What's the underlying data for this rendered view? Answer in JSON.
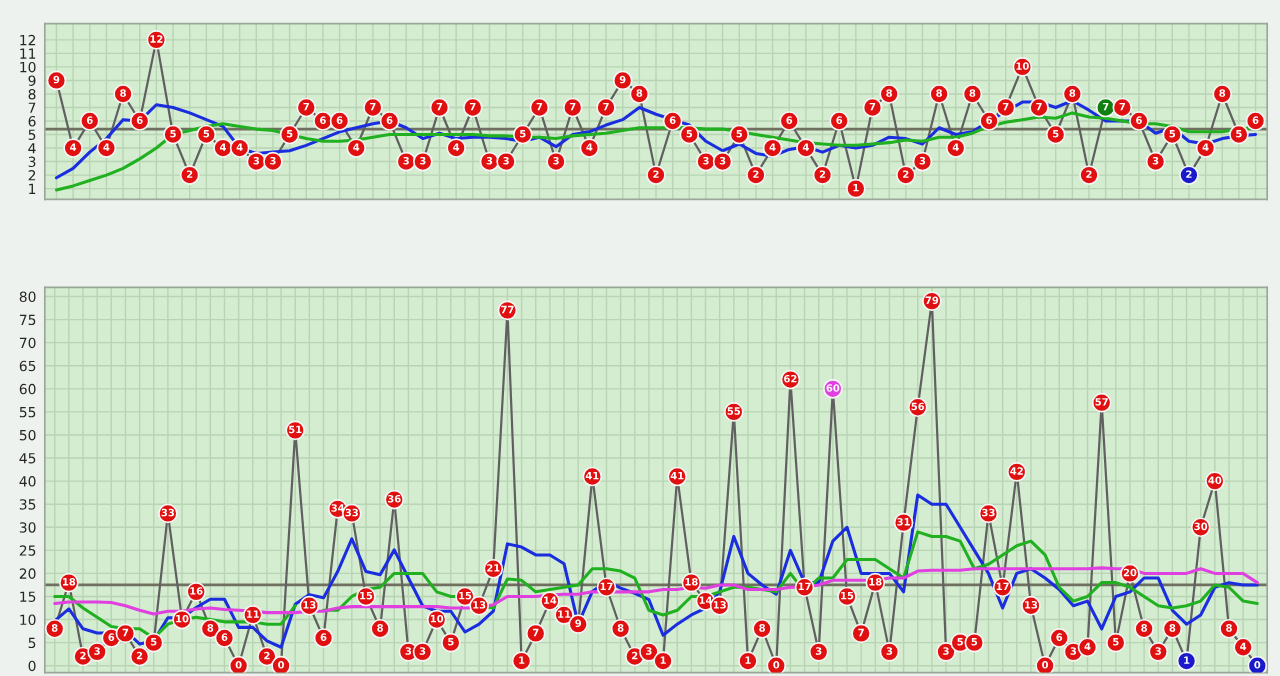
{
  "chart_data": [
    {
      "type": "line",
      "categories": [
        null,
        null,
        null,
        null,
        null,
        null,
        null,
        null,
        null,
        null,
        null,
        null,
        null,
        null,
        null,
        null,
        null,
        null,
        null,
        null,
        null,
        null,
        null,
        null,
        null,
        null,
        null,
        null,
        null,
        null,
        null,
        null,
        null,
        null,
        null,
        null,
        null,
        null,
        null,
        null,
        null,
        null,
        null,
        null,
        null,
        null,
        null,
        null,
        null,
        null,
        null,
        null,
        null,
        null,
        null,
        null,
        null,
        null,
        null,
        null,
        null,
        null,
        null,
        null,
        null,
        null,
        null,
        null,
        null,
        null,
        null,
        null,
        null
      ],
      "ylim": [
        0.2,
        13.2
      ],
      "yticks": [
        1,
        2,
        3,
        4,
        5,
        6,
        7,
        8,
        9,
        10,
        11,
        12
      ],
      "grid": true,
      "tick_labels": "y",
      "ref_lines": [
        {
          "axis": "y",
          "value": 5.4,
          "color": "#707060"
        }
      ],
      "series": [
        {
          "type": "line",
          "color": "#606060",
          "marker": "circle",
          "values": [
            9,
            4,
            6,
            4,
            8,
            6,
            12,
            5,
            2,
            5,
            4,
            4,
            3,
            3,
            5,
            7,
            6,
            6,
            4,
            7,
            6,
            3,
            3,
            7,
            4,
            7,
            3,
            3,
            5,
            7,
            3,
            7,
            4,
            7,
            9,
            8,
            2,
            6,
            5,
            3,
            3,
            5,
            2,
            4,
            6,
            4,
            2,
            6,
            1,
            7,
            8,
            2,
            3,
            8,
            4,
            8,
            6,
            7,
            10,
            7,
            5,
            8,
            2,
            7,
            7,
            6,
            3,
            5,
            2,
            4,
            8,
            5,
            6
          ],
          "value_labels": [
            "9",
            "4",
            "6",
            "4",
            "8",
            "6",
            "12",
            "5",
            "2",
            "5",
            "4",
            "4",
            "3",
            "3",
            "5",
            "7",
            "6",
            "6",
            "4",
            "7",
            "6",
            "3",
            "3",
            "7",
            "4",
            "7",
            "3",
            "3",
            "5",
            "7",
            "3",
            "7",
            "4",
            "7",
            "9",
            "8",
            "2",
            "6",
            "5",
            "3",
            "3",
            "5",
            "2",
            "4",
            "6",
            "4",
            "2",
            "6",
            "1",
            "7",
            "8",
            "2",
            "3",
            "8",
            "4",
            "8",
            "6",
            "7",
            "10",
            "7",
            "5",
            "8",
            "2",
            "7",
            "7",
            "6",
            "3",
            "5",
            "2",
            "4",
            "8",
            "5",
            "6"
          ],
          "colors": [
            "#e01010",
            "#e01010",
            "#e01010",
            "#e01010",
            "#e01010",
            "#e01010",
            "#e01010",
            "#e01010",
            "#e01010",
            "#e01010",
            "#e01010",
            "#e01010",
            "#e01010",
            "#e01010",
            "#e01010",
            "#e01010",
            "#e01010",
            "#e01010",
            "#e01010",
            "#e01010",
            "#e01010",
            "#e01010",
            "#e01010",
            "#e01010",
            "#e01010",
            "#e01010",
            "#e01010",
            "#e01010",
            "#e01010",
            "#e01010",
            "#e01010",
            "#e01010",
            "#e01010",
            "#e01010",
            "#e01010",
            "#e01010",
            "#e01010",
            "#e01010",
            "#e01010",
            "#e01010",
            "#e01010",
            "#e01010",
            "#e01010",
            "#e01010",
            "#e01010",
            "#e01010",
            "#e01010",
            "#e01010",
            "#e01010",
            "#e01010",
            "#e01010",
            "#e01010",
            "#e01010",
            "#e01010",
            "#e01010",
            "#e01010",
            "#e01010",
            "#e01010",
            "#e01010",
            "#e01010",
            "#e01010",
            "#e01010",
            "#e01010",
            "#108010",
            "#e01010",
            "#e01010",
            "#e01010",
            "#e01010",
            "#1a1acc",
            "#e01010",
            "#e01010",
            "#e01010",
            "#e01010"
          ]
        },
        {
          "type": "line",
          "color": "#1a2ee0",
          "values": [
            1.8,
            2.5,
            3.7,
            4.7,
            6.1,
            6,
            7.2,
            7,
            6.6,
            6.1,
            5.6,
            4,
            3.6,
            3.7,
            3.8,
            4.2,
            4.7,
            5.2,
            5.5,
            5.8,
            6,
            5.5,
            4.7,
            5.1,
            4.7,
            4.8,
            4.8,
            4.7,
            4.5,
            4.8,
            4.1,
            5,
            5.2,
            5.7,
            6.1,
            7,
            6.5,
            6.1,
            5.7,
            4.5,
            3.8,
            4.3,
            3.6,
            3.4,
            3.9,
            4.1,
            3.7,
            4.2,
            4,
            4.2,
            4.8,
            4.7,
            4.3,
            5.5,
            5,
            5.2,
            6,
            6.7,
            7.4,
            7.4,
            7,
            7.5,
            6.8,
            6,
            6,
            6,
            5.1,
            5.5,
            4.5,
            4.3,
            4.7,
            4.9,
            5
          ]
        },
        {
          "color": "#20b020",
          "values": [
            0.9,
            1.2,
            1.6,
            2,
            2.5,
            3.2,
            4,
            5,
            5.3,
            5.6,
            5.8,
            5.6,
            5.4,
            5.3,
            5,
            4.7,
            4.5,
            4.5,
            4.6,
            4.8,
            5,
            5,
            5,
            5,
            5,
            5,
            4.9,
            4.9,
            4.8,
            4.8,
            4.7,
            4.9,
            5,
            5.1,
            5.3,
            5.5,
            5.5,
            5.5,
            5.5,
            5.4,
            5.4,
            5.2,
            5,
            4.8,
            4.6,
            4.4,
            4.3,
            4.2,
            4.2,
            4.3,
            4.4,
            4.6,
            4.5,
            4.8,
            4.8,
            5.1,
            5.6,
            5.9,
            6.1,
            6.3,
            6.2,
            6.6,
            6.3,
            6.2,
            6,
            5.8,
            5.8,
            5.6,
            5.2,
            5.2,
            5.2,
            5.4,
            5.5
          ]
        }
      ]
    },
    {
      "type": "line",
      "categories": [
        null,
        null,
        null,
        null,
        null,
        null,
        null,
        null,
        null,
        null,
        null,
        null,
        null,
        null,
        null,
        null,
        null,
        null,
        null,
        null,
        null,
        null,
        null,
        null,
        null,
        null,
        null,
        null,
        null,
        null,
        null,
        null,
        null,
        null,
        null,
        null,
        null,
        null,
        null,
        null,
        null,
        null,
        null,
        null,
        null,
        null,
        null,
        null,
        null,
        null,
        null,
        null,
        null,
        null,
        null,
        null,
        null,
        null,
        null,
        null,
        null,
        null,
        null,
        null,
        null,
        null,
        null,
        null,
        null,
        null,
        null,
        null,
        null,
        null,
        null,
        null,
        null,
        null,
        null,
        null,
        null,
        null,
        null,
        null,
        null,
        null
      ],
      "ylim": [
        -1.5,
        82
      ],
      "yticks": [
        0,
        5,
        10,
        15,
        20,
        25,
        30,
        35,
        40,
        45,
        50,
        55,
        60,
        65,
        70,
        75,
        80
      ],
      "grid": true,
      "tick_labels": "y",
      "ref_lines": [
        {
          "axis": "y",
          "value": 17.5,
          "color": "#707060"
        }
      ],
      "series": [
        {
          "type": "line",
          "color": "#606060",
          "marker": "circle",
          "values": [
            8,
            18,
            2,
            3,
            6,
            7,
            2,
            5,
            33,
            10,
            16,
            8,
            6,
            0,
            11,
            2,
            0,
            51,
            13,
            6,
            34,
            33,
            15,
            8,
            36,
            3,
            3,
            10,
            5,
            15,
            13,
            21,
            77,
            1,
            7,
            14,
            11,
            9,
            41,
            17,
            8,
            2,
            3,
            1,
            41,
            18,
            14,
            13,
            55,
            1,
            8,
            0,
            62,
            17,
            3,
            60,
            15,
            7,
            18,
            3,
            31,
            56,
            79,
            3,
            5,
            5,
            33,
            17,
            42,
            13,
            0,
            6,
            3,
            4,
            57,
            5,
            20,
            8,
            3,
            8,
            1,
            30,
            40,
            8,
            4,
            0
          ],
          "value_labels": [
            "8",
            "18",
            "2",
            "3",
            "6",
            "7",
            "2",
            "5",
            "33",
            "10",
            "16",
            "8",
            "6",
            "0",
            "11",
            "2",
            "0",
            "51",
            "13",
            "6",
            "34",
            "33",
            "15",
            "8",
            "36",
            "3",
            "3",
            "10",
            "5",
            "15",
            "13",
            "21",
            "77",
            "1",
            "7",
            "14",
            "11",
            "9",
            "41",
            "17",
            "8",
            "2",
            "3",
            "1",
            "41",
            "18",
            "14",
            "13",
            "55",
            "1",
            "8",
            "0",
            "62",
            "17",
            "3",
            "60",
            "15",
            "7",
            "18",
            "3",
            "31",
            "56",
            "79",
            "3",
            "5",
            "5",
            "33",
            "17",
            "42",
            "13",
            "0",
            "6",
            "3",
            "4",
            "57",
            "5",
            "20",
            "8",
            "3",
            "8",
            "1",
            "30",
            "40",
            "8",
            "4",
            "0"
          ],
          "colors": [
            "#e01010",
            "#e01010",
            "#e01010",
            "#e01010",
            "#e01010",
            "#e01010",
            "#e01010",
            "#e01010",
            "#e01010",
            "#e01010",
            "#e01010",
            "#e01010",
            "#e01010",
            "#e01010",
            "#e01010",
            "#e01010",
            "#e01010",
            "#e01010",
            "#e01010",
            "#e01010",
            "#e01010",
            "#e01010",
            "#e01010",
            "#e01010",
            "#e01010",
            "#e01010",
            "#e01010",
            "#e01010",
            "#e01010",
            "#e01010",
            "#e01010",
            "#e01010",
            "#e01010",
            "#e01010",
            "#e01010",
            "#e01010",
            "#e01010",
            "#e01010",
            "#e01010",
            "#e01010",
            "#e01010",
            "#e01010",
            "#e01010",
            "#e01010",
            "#e01010",
            "#e01010",
            "#e01010",
            "#e01010",
            "#e01010",
            "#e01010",
            "#e01010",
            "#e01010",
            "#e01010",
            "#e01010",
            "#e01010",
            "#e040e0",
            "#e01010",
            "#e01010",
            "#e01010",
            "#e01010",
            "#e01010",
            "#e01010",
            "#e01010",
            "#e01010",
            "#e01010",
            "#e01010",
            "#e01010",
            "#e01010",
            "#e01010",
            "#e01010",
            "#e01010",
            "#e01010",
            "#e01010",
            "#e01010",
            "#e01010",
            "#e01010",
            "#e01010",
            "#e01010",
            "#e01010",
            "#e01010",
            "#1a1acc",
            "#e01010",
            "#e01010",
            "#e01010",
            "#e01010",
            "#1a1acc"
          ]
        },
        {
          "type": "line",
          "color": "#1a2ee0",
          "values": [
            9.7,
            12.3,
            8,
            7.1,
            7.1,
            7.6,
            4.7,
            5.4,
            10.4,
            10.4,
            12.6,
            14.4,
            14.4,
            8.3,
            8.3,
            5.4,
            4,
            13.3,
            15.4,
            14.7,
            20.4,
            27.5,
            20.4,
            19.7,
            25.1,
            19,
            13,
            11.8,
            11.8,
            7.3,
            9,
            11.8,
            26.4,
            25.7,
            24,
            24,
            22.1,
            9,
            16.1,
            18.3,
            16.8,
            15.7,
            14.3,
            6.6,
            9,
            11,
            12.5,
            16,
            28,
            20,
            17.5,
            15.5,
            25,
            18,
            18,
            27,
            30,
            20,
            20,
            20,
            16,
            37,
            35,
            35,
            30,
            25,
            20,
            12.5,
            20,
            21,
            19,
            16.5,
            13,
            14,
            8,
            15,
            16,
            19,
            19,
            12,
            9,
            11,
            17,
            18,
            17.5,
            17.5
          ]
        },
        {
          "color": "#20b020",
          "values": [
            15,
            15,
            12.5,
            10.5,
            8.5,
            8,
            8,
            6,
            9,
            10,
            10.5,
            10,
            9.5,
            9.5,
            9.5,
            9,
            9,
            13,
            null,
            12,
            12,
            15,
            16.5,
            17,
            20,
            20,
            20,
            16,
            15,
            15,
            13,
            12.5,
            18.8,
            18.5,
            16,
            16.5,
            17,
            17.5,
            21,
            21,
            20.5,
            19,
            12,
            11,
            12,
            15,
            15,
            16,
            17,
            17,
            16.5,
            16,
            20,
            16,
            19,
            19,
            23,
            23,
            23,
            21,
            19,
            29,
            28,
            28,
            27,
            21,
            22,
            24,
            26,
            27,
            24,
            17,
            14,
            15,
            18,
            18,
            17,
            15,
            13,
            12.5,
            13,
            14,
            17.5,
            17,
            14,
            13.5
          ]
        },
        {
          "color": "#e040e0",
          "values": [
            13.5,
            13.8,
            13.8,
            13.8,
            13.7,
            13,
            12,
            11.2,
            11.8,
            11.8,
            12.3,
            12.5,
            12.2,
            12,
            11.8,
            11.5,
            11.5,
            11.5,
            11.8,
            11.8,
            12.5,
            12.8,
            12.8,
            12.8,
            12.8,
            12.8,
            12.8,
            12.8,
            12.5,
            12.5,
            12.5,
            13.2,
            15,
            15,
            15,
            15.3,
            15.5,
            15.5,
            16,
            16,
            16,
            16,
            16,
            16.5,
            16.5,
            17,
            16.8,
            17.5,
            17.5,
            16.5,
            16.5,
            16.5,
            17,
            17,
            17.5,
            18.5,
            18.5,
            18.5,
            18.5,
            19,
            19,
            20.5,
            20.7,
            20.7,
            20.7,
            21,
            21,
            21,
            21,
            21,
            21,
            21,
            21,
            21,
            21.2,
            21,
            21,
            20,
            20,
            20,
            20,
            21,
            20,
            20,
            20,
            18
          ]
        }
      ]
    }
  ]
}
